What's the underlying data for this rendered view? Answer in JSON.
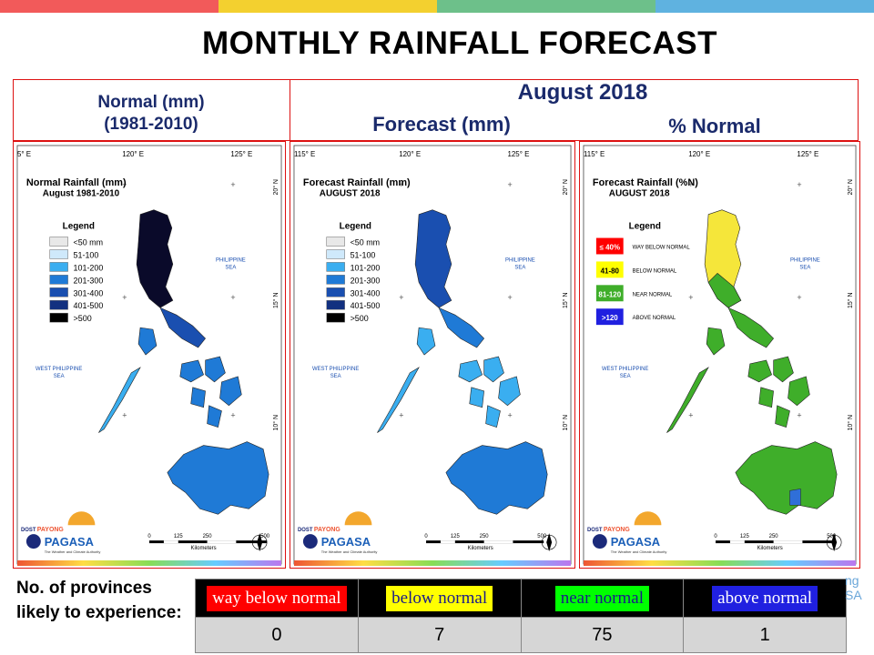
{
  "colors": {
    "top_bar": [
      "#f25a5a",
      "#f3d02f",
      "#6dc08a",
      "#5fb2e0"
    ],
    "way_below": "#ff0000",
    "below": "#ffff00",
    "near": "#00ff00",
    "above": "#2020e0"
  },
  "slide": {
    "title": "MONTHLY RAINFALL FORECAST",
    "normal_heading_line1": "Normal (mm)",
    "normal_heading_line2": "(1981-2010)",
    "period": "August 2018",
    "forecast_heading": "Forecast (mm)",
    "pct_heading": "% Normal"
  },
  "maps": {
    "normal": {
      "title_line1": "Normal Rainfall (mm)",
      "title_line2": "August 1981-2010",
      "legend_title": "Legend",
      "legend": [
        "<50 mm",
        "51-100",
        "101-200",
        "201-300",
        "301-400",
        "401-500",
        ">500"
      ],
      "lon_labels": [
        "5° E",
        "120° E",
        "125° E"
      ]
    },
    "forecast": {
      "title_line1": "Forecast Rainfall (mm)",
      "title_line2": "AUGUST 2018",
      "legend_title": "Legend",
      "legend": [
        "<50 mm",
        "51-100",
        "101-200",
        "201-300",
        "301-400",
        "401-500",
        ">500"
      ],
      "lon_labels": [
        "115° E",
        "120° E",
        "125° E"
      ]
    },
    "percent": {
      "title_line1": "Forecast Rainfall (%N)",
      "title_line2": "AUGUST 2018",
      "legend_title": "Legend",
      "legend": [
        {
          "range": "≤ 40%",
          "desc": "WAY BELOW NORMAL"
        },
        {
          "range": "41-80",
          "desc": "BELOW NORMAL"
        },
        {
          "range": "81-120",
          "desc": "NEAR NORMAL"
        },
        {
          "range": ">120",
          "desc": "ABOVE NORMAL"
        }
      ],
      "lon_labels": [
        "115° E",
        "120° E",
        "125° E"
      ]
    },
    "lat_labels": [
      "20° N",
      "15° N",
      "10° N"
    ],
    "sea_east_1": "PHILIPPINE",
    "sea_east_2": "SEA",
    "sea_west_1": "WEST PHILIPPINE",
    "sea_west_2": "SEA",
    "scale_ticks": [
      "0",
      "125",
      "250",
      "500"
    ],
    "scale_unit": "Kilometers",
    "logo_dost": "DOST",
    "logo_payong": "PAYONG",
    "logo_name": "PAGASA",
    "logo_tagline": "The Weather and Climate Authority"
  },
  "bottom": {
    "label": "No. of provinces likely to experience:",
    "categories": [
      "way below normal",
      "below normal",
      "near normal",
      "above normal"
    ],
    "counts": [
      "0",
      "7",
      "75",
      "1"
    ],
    "ghost_right_1": "ng",
    "ghost_right_2": "SA"
  }
}
